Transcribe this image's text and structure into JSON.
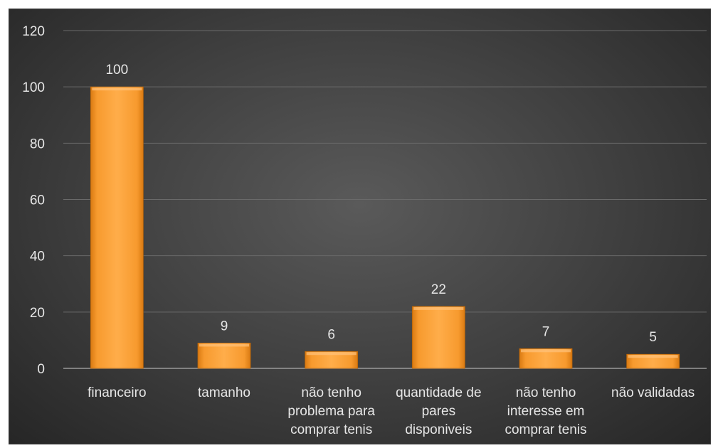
{
  "chart_data": {
    "type": "bar",
    "categories": [
      "financeiro",
      "tamanho",
      "não tenho problema para comprar tenis",
      "quantidade de pares disponiveis",
      "não tenho interesse em comprar tenis",
      "não validadas"
    ],
    "category_lines": [
      [
        "financeiro"
      ],
      [
        "tamanho"
      ],
      [
        "não tenho",
        "problema para",
        "comprar tenis"
      ],
      [
        "quantidade de",
        "pares",
        "disponiveis"
      ],
      [
        "não tenho",
        "interesse em",
        "comprar tenis"
      ],
      [
        "não validadas"
      ]
    ],
    "values": [
      100,
      9,
      6,
      22,
      7,
      5
    ],
    "data_labels": [
      "100",
      "9",
      "6",
      "22",
      "7",
      "5"
    ],
    "ylim": [
      0,
      120
    ],
    "yticks": [
      0,
      20,
      40,
      60,
      80,
      100,
      120
    ],
    "grid": true,
    "title": "",
    "xlabel": "",
    "ylabel": "",
    "colors": {
      "bar_light": "#ffad4a",
      "bar_mid": "#f79a2e",
      "bar_dark": "#d97a12",
      "background": "#404040"
    }
  }
}
